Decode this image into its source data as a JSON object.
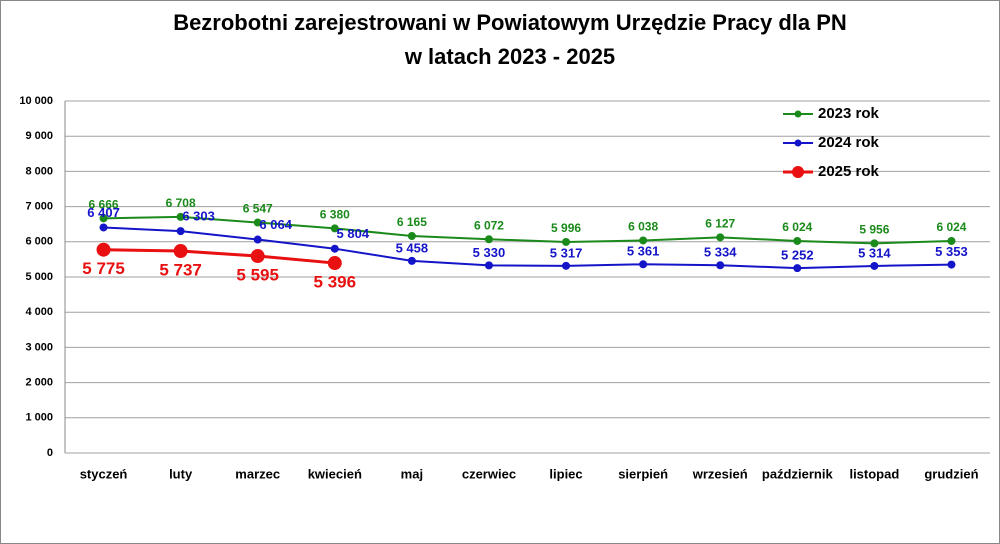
{
  "chart_data": {
    "type": "line",
    "title": [
      "Bezrobotni zarejestrowani w Powiatowym Urzędzie Pracy dla PN",
      "w latach 2023 - 2025"
    ],
    "categories": [
      "styczeń",
      "luty",
      "marzec",
      "kwiecień",
      "maj",
      "czerwiec",
      "lipiec",
      "sierpień",
      "wrzesień",
      "październik",
      "listopad",
      "grudzień"
    ],
    "series": [
      {
        "name": "2023 rok",
        "color": "#1a8a1a",
        "values": [
          6666,
          6708,
          6547,
          6380,
          6165,
          6072,
          5996,
          6038,
          6127,
          6024,
          5956,
          6024
        ],
        "value_labels": [
          "6 666",
          "6 708",
          "6 547",
          "6 380",
          "6 165",
          "6 072",
          "5 996",
          "6 038",
          "6 127",
          "6 024",
          "5 956",
          "6 024"
        ]
      },
      {
        "name": "2024 rok",
        "color": "#1414c8",
        "values": [
          6407,
          6303,
          6064,
          5804,
          5458,
          5330,
          5317,
          5361,
          5334,
          5252,
          5314,
          5353
        ],
        "value_labels": [
          "6 407",
          "6 303",
          "6 064",
          "5 804",
          "5 458",
          "5 330",
          "5 317",
          "5 361",
          "5 334",
          "5 252",
          "5 314",
          "5 353"
        ]
      },
      {
        "name": "2025 rok",
        "color": "#e81010",
        "values": [
          5775,
          5737,
          5595,
          5396,
          null,
          null,
          null,
          null,
          null,
          null,
          null,
          null
        ],
        "value_labels": [
          "5 775",
          "5 737",
          "5 595",
          "5 396",
          null,
          null,
          null,
          null,
          null,
          null,
          null,
          null
        ]
      }
    ],
    "ylim": [
      0,
      10000
    ],
    "yticks": [
      0,
      {
        "value": 1000,
        "label": "1 000"
      },
      {
        "value": 2000,
        "label": "2 000"
      },
      {
        "value": 3000,
        "label": "3 000"
      },
      {
        "value": 4000,
        "label": "4 000"
      },
      {
        "value": 5000,
        "label": "5 000"
      },
      {
        "value": 6000,
        "label": "6 000"
      },
      {
        "value": 7000,
        "label": "7 000"
      },
      {
        "value": 8000,
        "label": "8 000"
      },
      {
        "value": 9000,
        "label": "9 000"
      },
      {
        "value": 10000,
        "label": "10 000"
      }
    ],
    "grid": true,
    "legend": "top-right"
  }
}
